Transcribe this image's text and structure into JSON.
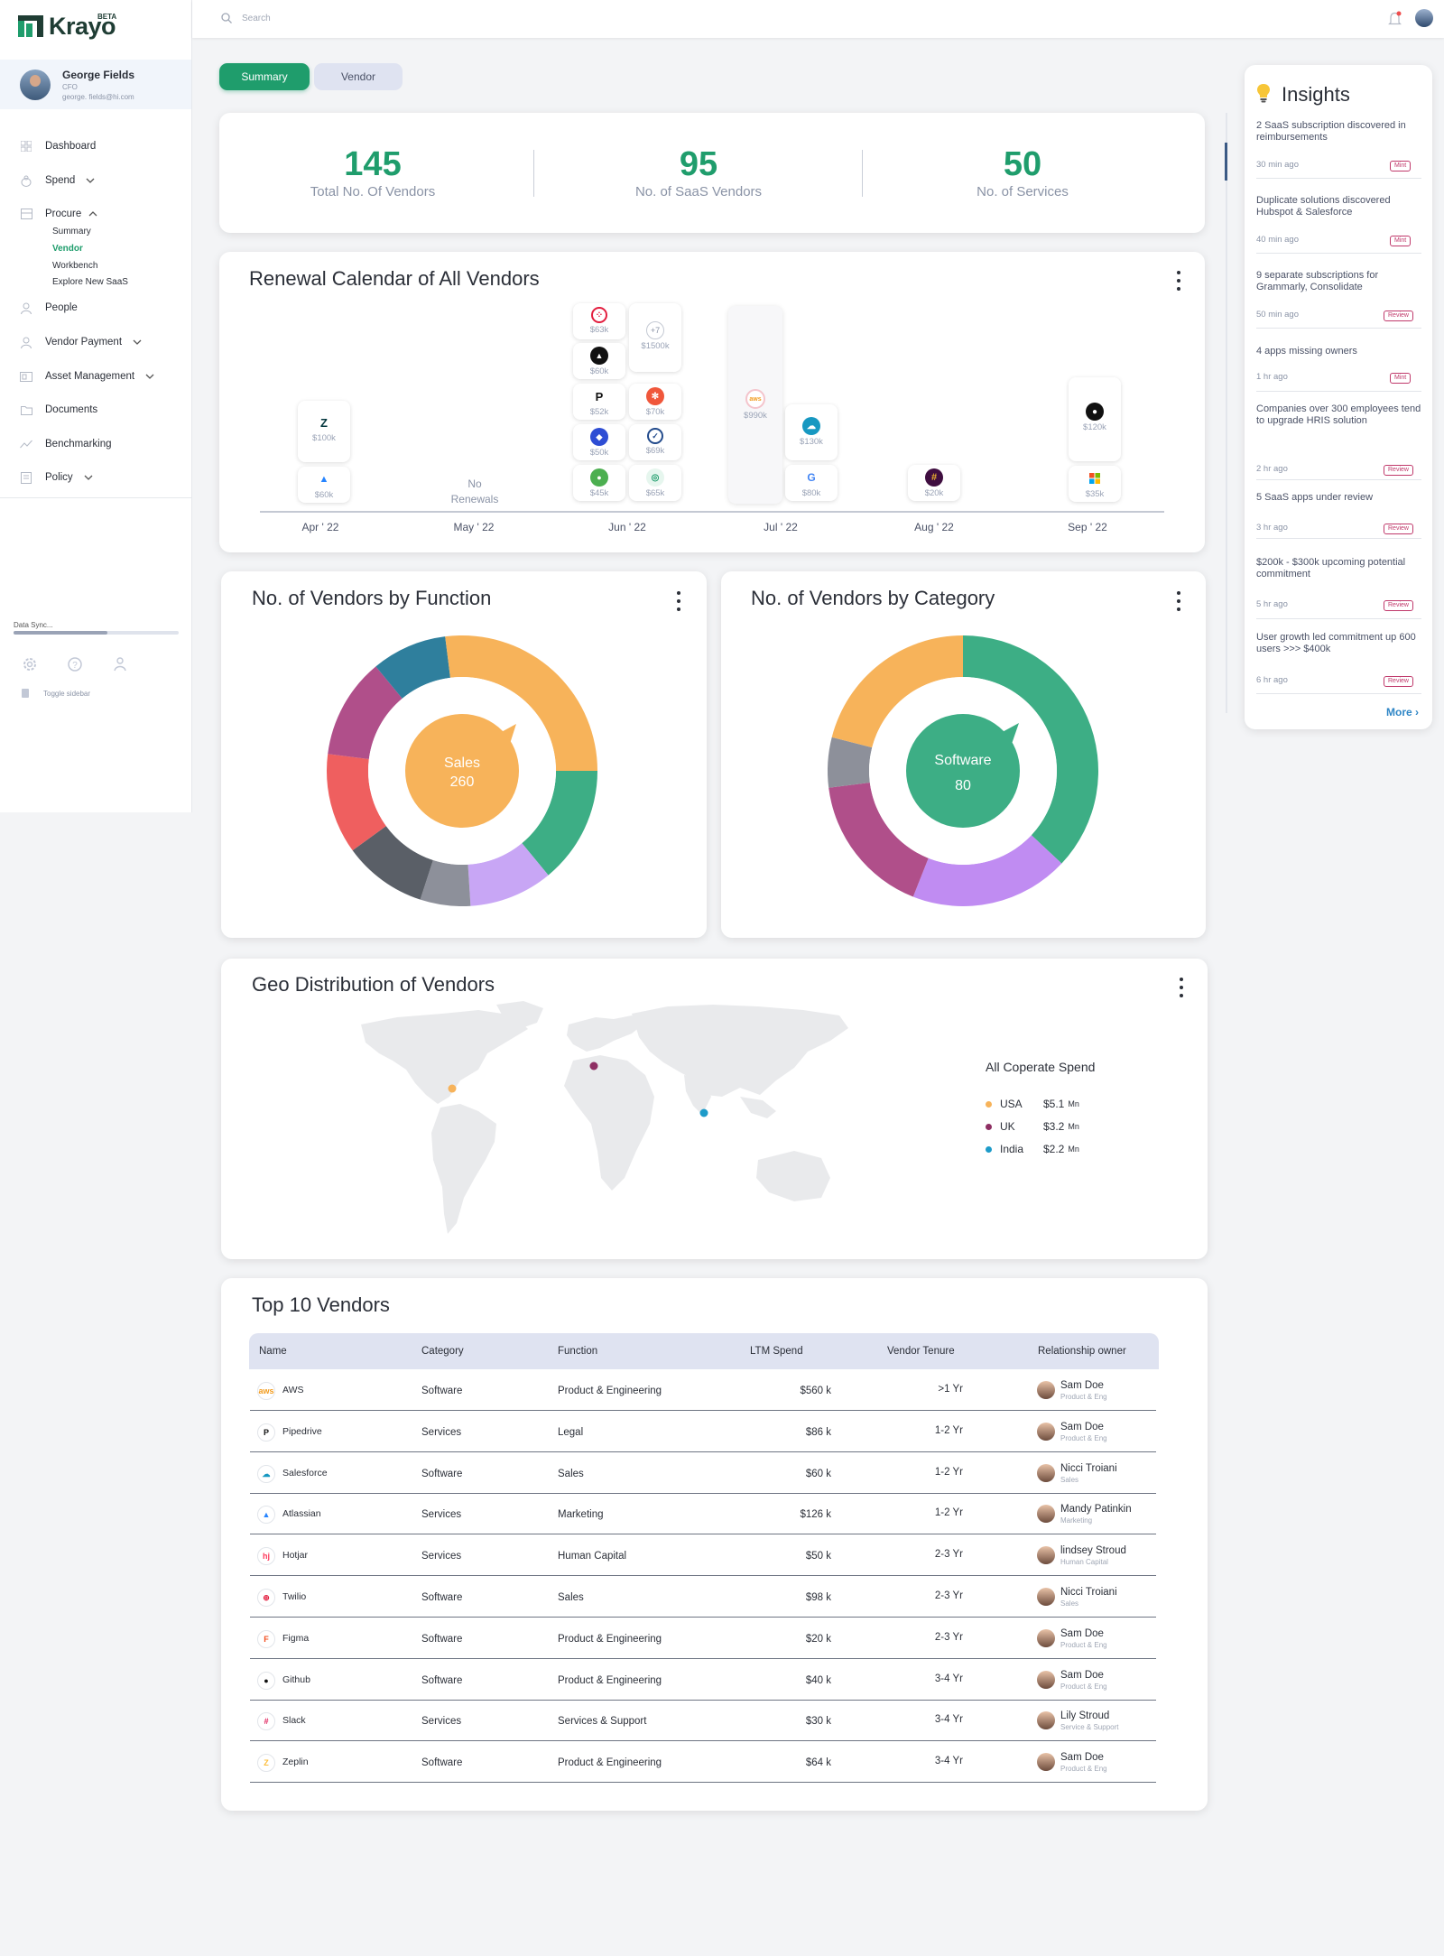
{
  "brand": {
    "name": "Krayo",
    "badge": "BETA",
    "color": "#1f9d6c"
  },
  "user": {
    "name": "George Fields",
    "role": "CFO",
    "email": "george. fields@hi.com"
  },
  "nav": [
    {
      "label": "Dashboard",
      "icon": "grid-icon"
    },
    {
      "label": "Spend",
      "icon": "coins-icon",
      "expandable": true
    },
    {
      "label": "Procure",
      "icon": "cart-icon",
      "expanded": true
    },
    {
      "label": "People",
      "icon": "person-icon"
    },
    {
      "label": "Vendor Payment",
      "icon": "payment-icon",
      "expandable": true
    },
    {
      "label": "Asset Management",
      "icon": "asset-icon",
      "expandable": true
    },
    {
      "label": "Documents",
      "icon": "folder-icon"
    },
    {
      "label": "Benchmarking",
      "icon": "trend-icon"
    },
    {
      "label": "Policy",
      "icon": "policy-icon",
      "expandable": true
    }
  ],
  "procure_sub": [
    "Summary",
    "Vendor",
    "Workbench",
    "Explore New SaaS"
  ],
  "active_sub": "Vendor",
  "sync": {
    "label": "Data Sync...",
    "progress": 0.57
  },
  "toggle_label": "Toggle sidebar",
  "search": {
    "placeholder": "Search"
  },
  "tabs": [
    "Summary",
    "Vendor"
  ],
  "active_tab": "Summary",
  "stats": [
    {
      "value": "145",
      "label": "Total No. Of Vendors"
    },
    {
      "value": "95",
      "label": "No. of SaaS Vendors"
    },
    {
      "value": "50",
      "label": "No. of Services"
    }
  ],
  "renewal": {
    "title": "Renewal Calendar of All Vendors",
    "months": [
      "Apr ' 22",
      "May ' 22",
      "Jun ' 22",
      "Jul ' 22",
      "Aug ' 22",
      "Sep ' 22"
    ],
    "no_renewals": "No Renewals",
    "chips": {
      "apr_1": {
        "amount": "$100k",
        "vendor": "Zendesk"
      },
      "apr_2": {
        "amount": "$60k",
        "vendor": "Atlassian"
      },
      "jun_1": {
        "amount": "$63k",
        "vendor": "Twilio"
      },
      "jun_2": {
        "amount": "$60k",
        "vendor": "Vendor"
      },
      "jun_3": {
        "amount": "$52k",
        "vendor": "Pipedrive"
      },
      "jun_4": {
        "amount": "$50k",
        "vendor": "Vendor"
      },
      "jun_5": {
        "amount": "$45k",
        "vendor": "Vendor"
      },
      "jun_6": {
        "amount": "$1500k",
        "vendor": "+7"
      },
      "jun_7": {
        "amount": "$70k",
        "vendor": "Hubspot"
      },
      "jun_8": {
        "amount": "$69k",
        "vendor": "Vendor"
      },
      "jun_9": {
        "amount": "$65k",
        "vendor": "Vendor"
      },
      "jul_1": {
        "amount": "$990k",
        "vendor": "AWS"
      },
      "jul_2": {
        "amount": "$130k",
        "vendor": "Salesforce"
      },
      "jul_3": {
        "amount": "$80k",
        "vendor": "Google"
      },
      "aug_1": {
        "amount": "$20k",
        "vendor": "Slack"
      },
      "sep_1": {
        "amount": "$120k",
        "vendor": "Github"
      },
      "sep_2": {
        "amount": "$35k",
        "vendor": "Microsoft"
      }
    },
    "plus_label": "+7"
  },
  "function_chart": {
    "title": "No. of Vendors by Function",
    "center_label": "Sales",
    "center_value": "260",
    "segments": [
      {
        "value": 0.25,
        "color": "#f7b35a"
      },
      {
        "value": 0.14,
        "color": "#3dae85"
      },
      {
        "value": 0.1,
        "color": "#c8a6f5"
      },
      {
        "value": 0.06,
        "color": "#8d909a"
      },
      {
        "value": 0.1,
        "color": "#5a5f67"
      },
      {
        "value": 0.12,
        "color": "#ef5f5f"
      },
      {
        "value": 0.12,
        "color": "#b04f8a"
      },
      {
        "value": 0.09,
        "color": "#2f7f9d"
      },
      {
        "value": 0.02,
        "color": "#f7b35a"
      }
    ]
  },
  "category_chart": {
    "title": "No. of Vendors by Category",
    "center_label": "Software",
    "center_value": "80",
    "segments": [
      {
        "value": 0.37,
        "color": "#3dae85"
      },
      {
        "value": 0.19,
        "color": "#c08cf2"
      },
      {
        "value": 0.17,
        "color": "#b04f8a"
      },
      {
        "value": 0.06,
        "color": "#8d909a"
      },
      {
        "value": 0.21,
        "color": "#f7b35a"
      }
    ]
  },
  "geo": {
    "title": "Geo Distribution of Vendors",
    "legend_title": "All Coperate Spend",
    "entries": [
      {
        "country": "USA",
        "amount": "$5.1",
        "unit": "Mn",
        "color": "#f7b35a"
      },
      {
        "country": "UK",
        "amount": "$3.2",
        "unit": "Mn",
        "color": "#8e2f63"
      },
      {
        "country": "India",
        "amount": "$2.2",
        "unit": "Mn",
        "color": "#1d9bc9"
      }
    ]
  },
  "top10": {
    "title": "Top 10 Vendors",
    "columns": [
      "Name",
      "Category",
      "Function",
      "LTM Spend",
      "Vendor Tenure",
      "Relationship owner"
    ],
    "rows": [
      {
        "name": "AWS",
        "category": "Software",
        "function": "Product & Engineering",
        "spend": "$560 k",
        "tenure": ">1 Yr",
        "owner": "Sam Doe",
        "dept": "Product & Eng",
        "logo": "aws",
        "color": "#f29b1d"
      },
      {
        "name": "Pipedrive",
        "category": "Services",
        "function": "Legal",
        "spend": "$86 k",
        "tenure": "1-2 Yr",
        "owner": "Sam Doe",
        "dept": "Product & Eng",
        "logo": "P",
        "color": "#111"
      },
      {
        "name": "Salesforce",
        "category": "Software",
        "function": "Sales",
        "spend": "$60 k",
        "tenure": "1-2 Yr",
        "owner": "Nicci Troiani",
        "dept": "Sales",
        "logo": "☁",
        "color": "#1798c1"
      },
      {
        "name": "Atlassian",
        "category": "Services",
        "function": "Marketing",
        "spend": "$126 k",
        "tenure": "1-2 Yr",
        "owner": "Mandy Patinkin",
        "dept": "Marketing",
        "logo": "▲",
        "color": "#2684ff"
      },
      {
        "name": "Hotjar",
        "category": "Services",
        "function": "Human Capital",
        "spend": "$50 k",
        "tenure": "2-3 Yr",
        "owner": "lindsey Stroud",
        "dept": "Human Capital",
        "logo": "hj",
        "color": "#fd3a5c"
      },
      {
        "name": "Twilio",
        "category": "Software",
        "function": "Sales",
        "spend": "$98 k",
        "tenure": "2-3 Yr",
        "owner": "Nicci Troiani",
        "dept": "Sales",
        "logo": "⊕",
        "color": "#e31e3f"
      },
      {
        "name": "Figma",
        "category": "Software",
        "function": "Product & Engineering",
        "spend": "$20 k",
        "tenure": "2-3 Yr",
        "owner": "Sam Doe",
        "dept": "Product & Eng",
        "logo": "F",
        "color": "#f24e1e"
      },
      {
        "name": "Github",
        "category": "Software",
        "function": "Product & Engineering",
        "spend": "$40 k",
        "tenure": "3-4 Yr",
        "owner": "Sam Doe",
        "dept": "Product & Eng",
        "logo": "●",
        "color": "#111"
      },
      {
        "name": "Slack",
        "category": "Services",
        "function": "Services & Support",
        "spend": "$30 k",
        "tenure": "3-4 Yr",
        "owner": "Lily Stroud",
        "dept": "Service & Support",
        "logo": "#",
        "color": "#e01e5a"
      },
      {
        "name": "Zeplin",
        "category": "Software",
        "function": "Product & Engineering",
        "spend": "$64 k",
        "tenure": "3-4 Yr",
        "owner": "Sam Doe",
        "dept": "Product & Eng",
        "logo": "Z",
        "color": "#fdbd39"
      }
    ]
  },
  "insights": {
    "title": "Insights",
    "more": "More",
    "items": [
      {
        "text": "2 SaaS subscription discovered in reimbursements",
        "time": "30 min ago",
        "badge": "Mint"
      },
      {
        "text": "Duplicate solutions discovered Hubspot & Salesforce",
        "time": "40 min ago",
        "badge": "Mint"
      },
      {
        "text": "9 separate subscriptions for Grammarly, Consolidate",
        "time": "50 min ago",
        "badge": "Review"
      },
      {
        "text": "4 apps missing owners",
        "time": "1 hr ago",
        "badge": "Mint"
      },
      {
        "text": "Companies over 300 employees tend to upgrade HRIS solution",
        "time": "2 hr ago",
        "badge": "Review"
      },
      {
        "text": "5 SaaS apps under review",
        "time": "3 hr ago",
        "badge": "Review"
      },
      {
        "text": "$200k - $300k upcoming potential commitment",
        "time": "5 hr ago",
        "badge": "Review"
      },
      {
        "text": "User growth led commitment up 600 users >>> $400k",
        "time": "6 hr ago",
        "badge": "Review"
      }
    ]
  }
}
